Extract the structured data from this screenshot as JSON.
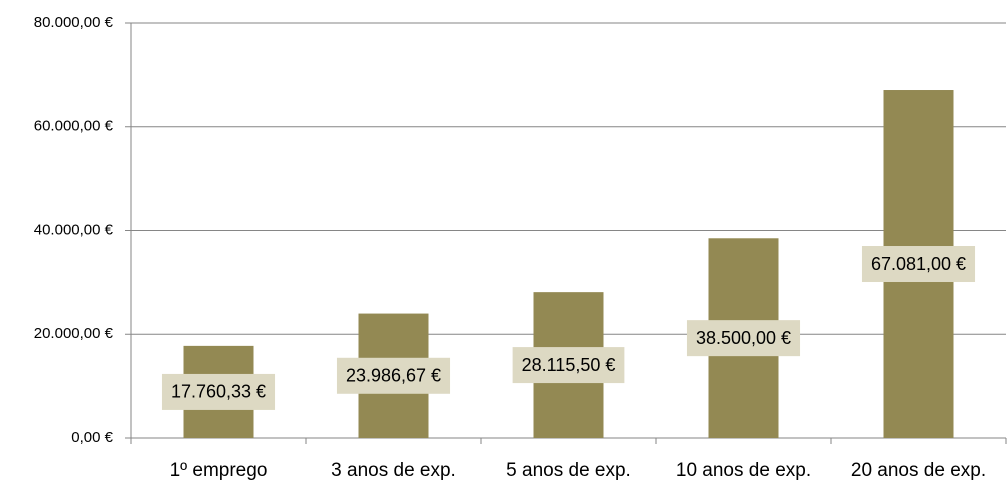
{
  "chart_data": {
    "type": "bar",
    "categories": [
      "1º emprego",
      "3 anos de exp.",
      "5 anos de exp.",
      "10 anos de exp.",
      "20 anos de exp."
    ],
    "values": [
      17760.33,
      23986.67,
      28115.5,
      38500,
      67081
    ],
    "value_labels": [
      "17.760,33 €",
      "23.986,67 €",
      "28.115,50 €",
      "38.500,00 €",
      "67.081,00 €"
    ],
    "color": "#938953",
    "label_background": "#ddd9c3",
    "ylim": [
      0,
      80000
    ],
    "yticks": [
      {
        "value": 0,
        "label": "0,00 €"
      },
      {
        "value": 20000,
        "label": "20.000,00 €"
      },
      {
        "value": 40000,
        "label": "40.000,00 €"
      },
      {
        "value": 60000,
        "label": "60.000,00 €"
      },
      {
        "value": 80000,
        "label": "80.000,00 €"
      }
    ],
    "grid": true
  }
}
